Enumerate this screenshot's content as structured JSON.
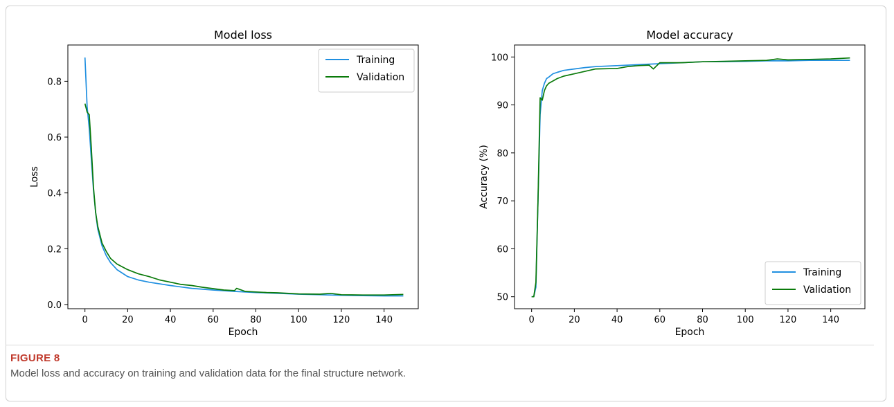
{
  "figure": {
    "label": "FIGURE 8",
    "caption": "Model loss and accuracy on training and validation data for the final structure network."
  },
  "colors": {
    "training": "#1f8fe0",
    "validation": "#0a7a0a"
  },
  "chart_data": [
    {
      "type": "line",
      "title": "Model loss",
      "xlabel": "Epoch",
      "ylabel": "Loss",
      "xlim": [
        -8,
        156
      ],
      "ylim": [
        -0.015,
        0.93
      ],
      "xticks": [
        "0",
        "20",
        "40",
        "60",
        "80",
        "100",
        "120",
        "140"
      ],
      "yticks": [
        "0.0",
        "0.2",
        "0.4",
        "0.6",
        "0.8"
      ],
      "legend": "top-right",
      "series": [
        {
          "name": "Training",
          "x": [
            0,
            1,
            2,
            3,
            4,
            5,
            6,
            8,
            10,
            12,
            15,
            20,
            25,
            30,
            40,
            50,
            60,
            70,
            80,
            90,
            100,
            110,
            120,
            130,
            140,
            149
          ],
          "y": [
            0.885,
            0.71,
            0.63,
            0.52,
            0.41,
            0.33,
            0.27,
            0.21,
            0.175,
            0.15,
            0.125,
            0.1,
            0.088,
            0.08,
            0.068,
            0.058,
            0.052,
            0.047,
            0.043,
            0.04,
            0.037,
            0.035,
            0.033,
            0.032,
            0.031,
            0.031
          ]
        },
        {
          "name": "Validation",
          "x": [
            0,
            1,
            2,
            3,
            4,
            5,
            6,
            8,
            10,
            12,
            15,
            20,
            25,
            30,
            35,
            40,
            45,
            50,
            55,
            60,
            65,
            70,
            71,
            75,
            80,
            85,
            90,
            100,
            110,
            115,
            120,
            130,
            140,
            149
          ],
          "y": [
            0.72,
            0.69,
            0.68,
            0.56,
            0.42,
            0.33,
            0.28,
            0.22,
            0.19,
            0.165,
            0.145,
            0.125,
            0.11,
            0.1,
            0.088,
            0.08,
            0.072,
            0.068,
            0.062,
            0.057,
            0.052,
            0.05,
            0.058,
            0.047,
            0.045,
            0.043,
            0.042,
            0.038,
            0.037,
            0.04,
            0.035,
            0.034,
            0.034,
            0.036
          ]
        }
      ]
    },
    {
      "type": "line",
      "title": "Model accuracy",
      "xlabel": "Epoch",
      "ylabel": "Accuracy (%)",
      "xlim": [
        -8,
        156
      ],
      "ylim": [
        47.5,
        102.5
      ],
      "xticks": [
        "0",
        "20",
        "40",
        "60",
        "80",
        "100",
        "120",
        "140"
      ],
      "yticks": [
        "50",
        "60",
        "70",
        "80",
        "90",
        "100"
      ],
      "legend": "bottom-right",
      "series": [
        {
          "name": "Training",
          "x": [
            0,
            1,
            2,
            3,
            4,
            5,
            6,
            7,
            8,
            10,
            12,
            15,
            20,
            25,
            30,
            40,
            50,
            60,
            70,
            80,
            90,
            100,
            110,
            120,
            130,
            140,
            149
          ],
          "y": [
            50,
            50,
            52,
            70,
            88,
            93,
            94.5,
            95.5,
            95.8,
            96.5,
            96.8,
            97.2,
            97.5,
            97.8,
            98,
            98.2,
            98.4,
            98.6,
            98.8,
            99,
            99,
            99.1,
            99.2,
            99.2,
            99.3,
            99.3,
            99.3
          ]
        },
        {
          "name": "Validation",
          "x": [
            0,
            1,
            2,
            3,
            4,
            5,
            6,
            7,
            8,
            10,
            12,
            15,
            20,
            25,
            30,
            40,
            45,
            50,
            55,
            57,
            60,
            70,
            80,
            90,
            100,
            110,
            115,
            120,
            130,
            140,
            149
          ],
          "y": [
            50,
            50,
            53,
            70,
            91.5,
            91,
            93,
            94,
            94.5,
            95,
            95.5,
            96,
            96.5,
            97,
            97.5,
            97.6,
            98,
            98.2,
            98.3,
            97.5,
            98.8,
            98.8,
            99,
            99.1,
            99.2,
            99.3,
            99.6,
            99.4,
            99.5,
            99.6,
            99.8
          ]
        }
      ]
    }
  ]
}
